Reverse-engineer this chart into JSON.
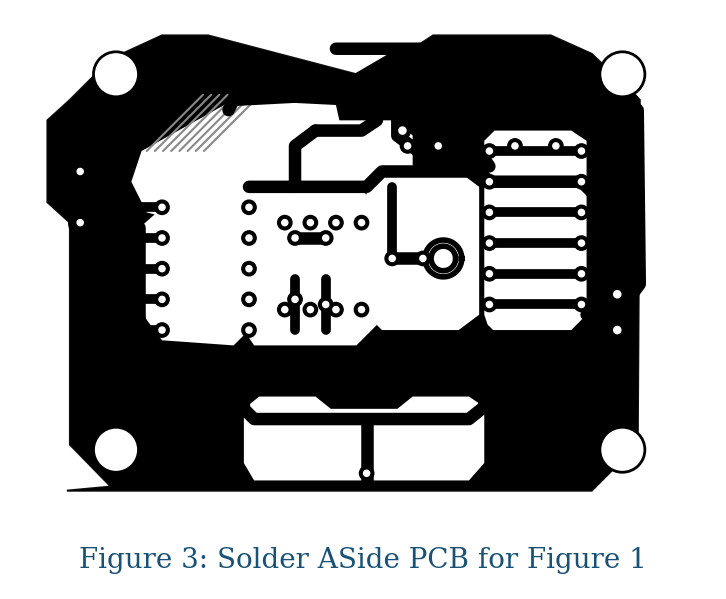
{
  "title": "Figure 3: Solder ASide PCB for Figure 1",
  "title_color": "#1a5276",
  "title_fontsize": 20,
  "bg_color": "#ffffff",
  "BLACK": "#000000",
  "WHITE": "#ffffff",
  "figsize": [
    7.26,
    5.99
  ],
  "dpi": 100
}
